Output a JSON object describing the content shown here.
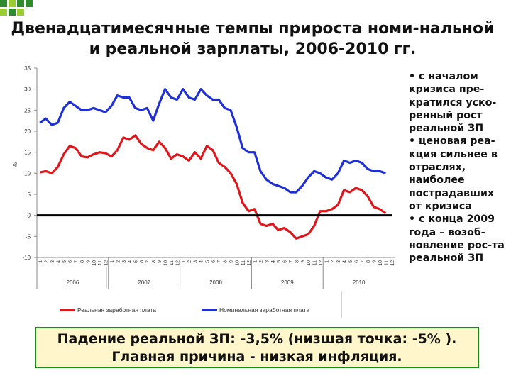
{
  "title": "Двенадцатимесячные темпы прироста номи-нальной и реальной зарплаты, 2006-2010 гг.",
  "side_text": [
    "• с началом кризиса пре-кратился уско-ренный рост реальной ЗП",
    "• ценовая реа-кция сильнее в отраслях, наиболее пострадавших от кризиса",
    "• с конца 2009 года – возоб-новление рос-та реальной ЗП"
  ],
  "footer": {
    "line1": "Падение реальной ЗП: -3,5% (низшая точка: -5% ).",
    "line2": "Главная причина - низкая инфляция."
  },
  "colors": {
    "real": "#e0161b",
    "nominal": "#1f2fd6",
    "zero": "#000000",
    "accent": "#1a8a1a"
  },
  "chart_data": {
    "type": "line",
    "ylabel": "%",
    "ylim": [
      -10,
      35
    ],
    "yticks": [
      "35",
      "30",
      "25",
      "20",
      "15",
      "10",
      "5",
      "0",
      "-5",
      "-10"
    ],
    "years": [
      "2006",
      "2007",
      "2008",
      "2009",
      "2010"
    ],
    "months": [
      "1",
      "2",
      "3",
      "4",
      "5",
      "6",
      "7",
      "8",
      "9",
      "10",
      "11",
      "12"
    ],
    "series": [
      {
        "name": "Реальная заработная плата",
        "key": "real",
        "values": [
          10.2,
          10.5,
          10.0,
          11.5,
          14.5,
          16.5,
          16.0,
          14.0,
          13.8,
          14.5,
          15.0,
          14.8,
          14.0,
          15.5,
          18.5,
          18.0,
          19.0,
          17.0,
          16.0,
          15.5,
          17.5,
          16.0,
          13.5,
          14.5,
          14.0,
          13.0,
          15.0,
          13.5,
          16.5,
          15.5,
          12.5,
          11.5,
          10.0,
          7.5,
          3.0,
          1.0,
          1.5,
          -2.0,
          -2.5,
          -2.0,
          -3.5,
          -3.0,
          -4.0,
          -5.5,
          -5.0,
          -4.5,
          -2.5,
          1.0,
          1.0,
          1.5,
          2.5,
          6.0,
          5.5,
          6.5,
          6.0,
          4.5,
          2.0,
          1.5,
          0.5
        ]
      },
      {
        "name": "Номинальная заработная плата",
        "key": "nominal",
        "values": [
          22.0,
          23.0,
          21.5,
          22.0,
          25.5,
          27.0,
          26.0,
          25.0,
          25.0,
          25.5,
          25.0,
          24.5,
          26.0,
          28.5,
          28.0,
          28.0,
          25.5,
          25.0,
          25.5,
          22.5,
          26.5,
          30.0,
          28.0,
          27.5,
          30.0,
          28.0,
          27.5,
          30.0,
          28.5,
          27.5,
          27.5,
          25.5,
          25.0,
          21.0,
          16.0,
          15.0,
          15.0,
          10.5,
          8.5,
          7.5,
          7.0,
          6.5,
          5.5,
          5.5,
          7.0,
          9.0,
          10.5,
          10.0,
          9.0,
          8.5,
          10.0,
          13.0,
          12.5,
          13.0,
          12.5,
          11.0,
          10.5,
          10.5,
          10.0
        ]
      }
    ],
    "zero_line": 0
  }
}
